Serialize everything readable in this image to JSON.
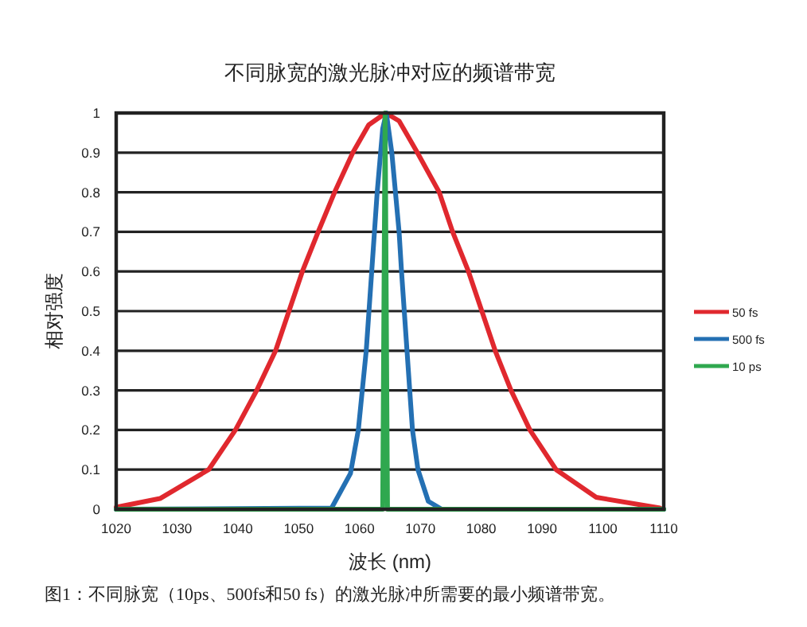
{
  "chart_data": {
    "type": "line",
    "title": "不同脉宽的激光脉冲对应的频谱带宽",
    "xlabel": "波长 (nm)",
    "ylabel": "相对强度",
    "annotations": [
      "图1：不同脉宽（10ps、500fs和50 fs）的激光脉冲所需要的最小频谱带宽。"
    ],
    "series": [
      {
        "name": "50 fs",
        "color": "#e0282e",
        "x": [
          1020,
          1027.2,
          1035.2,
          1039.6,
          1043.1,
          1046.2,
          1048.4,
          1050.6,
          1053.2,
          1055.9,
          1058.9,
          1061.5,
          1064.3,
          1066.5,
          1069.5,
          1073.1,
          1075.3,
          1077.9,
          1080.1,
          1082.3,
          1084.9,
          1088.0,
          1092.3,
          1098.9,
          1109.4
        ],
        "values": [
          0.005,
          0.027,
          0.1,
          0.2,
          0.3,
          0.4,
          0.5,
          0.6,
          0.7,
          0.8,
          0.9,
          0.97,
          1,
          0.98,
          0.9,
          0.8,
          0.7,
          0.6,
          0.5,
          0.4,
          0.3,
          0.2,
          0.1,
          0.03,
          0.003
        ]
      },
      {
        "name": "500 fs",
        "color": "#2470b3",
        "x": [
          1020,
          1055.4,
          1058.5,
          1059.8,
          1061.1,
          1062.0,
          1062.9,
          1063.8,
          1064.4,
          1065.3,
          1066.5,
          1066.9,
          1067.8,
          1068.7,
          1069.6,
          1071.3,
          1073.5,
          1110
        ],
        "values": [
          0,
          0.003,
          0.09,
          0.2,
          0.4,
          0.6,
          0.8,
          0.96,
          1,
          0.9,
          0.7,
          0.6,
          0.4,
          0.2,
          0.1,
          0.02,
          0,
          0
        ]
      },
      {
        "name": "10 ps",
        "color": "#2fa84f",
        "x": [
          1020,
          1063.8,
          1064.2,
          1064.6,
          1110
        ],
        "values": [
          0,
          0,
          1,
          0,
          0
        ]
      }
    ],
    "xlim": [
      1020,
      1110
    ],
    "xticks": [
      1020,
      1030,
      1040,
      1050,
      1060,
      1070,
      1080,
      1090,
      1100,
      1110
    ],
    "ylim": [
      0,
      1
    ],
    "yticks": [
      0,
      0.1,
      0.2,
      0.3,
      0.4,
      0.5,
      0.6,
      0.7,
      0.8,
      0.9,
      1
    ],
    "grid": "y",
    "legend": "right",
    "line_style": "solid"
  }
}
